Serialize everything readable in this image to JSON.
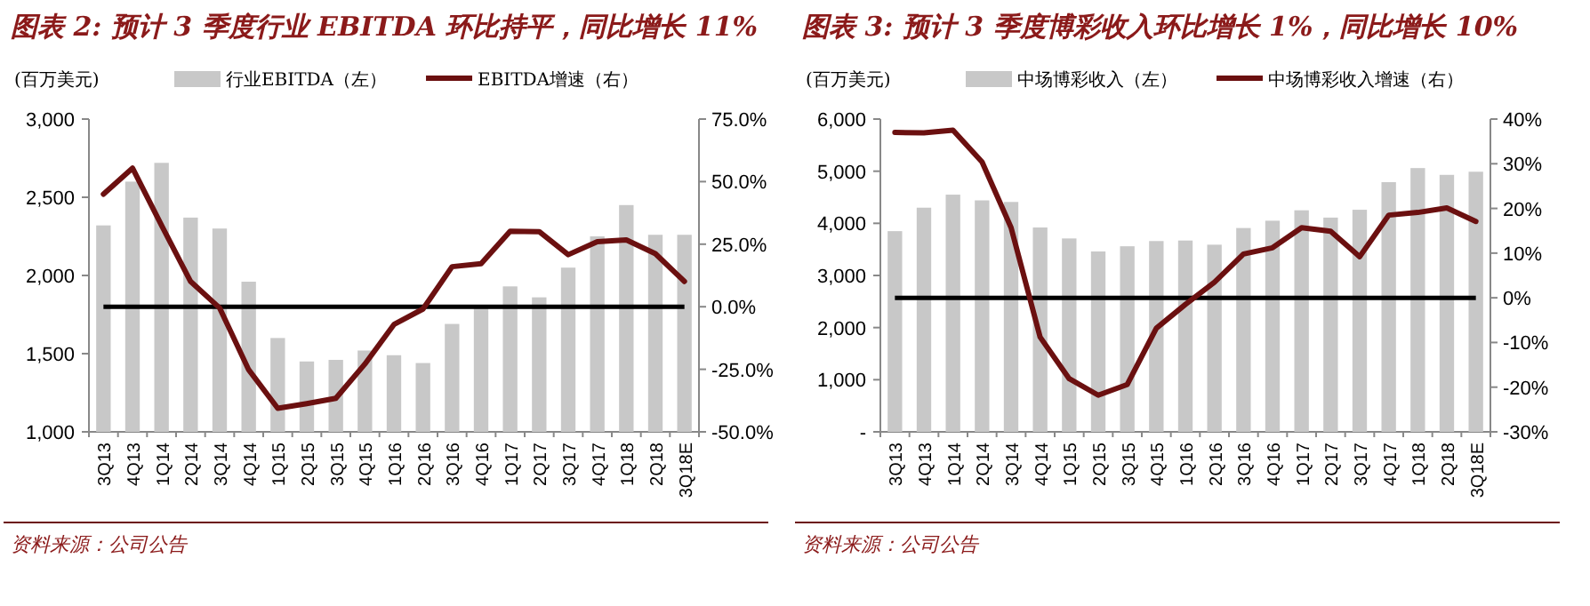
{
  "chart_data": [
    {
      "type": "bar",
      "title": "图表 2: 预计 3 季度行业 EBITDA 环比持平，同比增长 11%",
      "ylabel": "(百万美元)",
      "categories": [
        "3Q13",
        "4Q13",
        "1Q14",
        "2Q14",
        "3Q14",
        "4Q14",
        "1Q15",
        "2Q15",
        "3Q15",
        "4Q15",
        "1Q16",
        "2Q16",
        "3Q16",
        "4Q16",
        "1Q17",
        "2Q17",
        "3Q17",
        "4Q17",
        "1Q18",
        "2Q18",
        "3Q18E"
      ],
      "series": [
        {
          "name": "行业EBITDA（左）",
          "color": "#c8c8c8",
          "values": [
            2320,
            2600,
            2720,
            2370,
            2300,
            1960,
            1600,
            1450,
            1460,
            1520,
            1490,
            1440,
            1690,
            1800,
            1930,
            1860,
            2050,
            2250,
            2450,
            2260,
            2260
          ]
        },
        {
          "name": "EBITDA增速（右）",
          "type": "line",
          "axis": "y2",
          "color": "#6b1010",
          "values": [
            45,
            55.4,
            32.5,
            10.1,
            -0.5,
            -25.2,
            -40.6,
            -38.7,
            -36.6,
            -22.9,
            -7.1,
            -0.9,
            16,
            17.2,
            30.2,
            30,
            20.8,
            26,
            26.7,
            21.2,
            10.1
          ]
        }
      ],
      "ylim": [
        1000,
        3000
      ],
      "yticks": [
        {
          "value": 1000,
          "label": "1,000"
        },
        {
          "value": 1500,
          "label": "1,500"
        },
        {
          "value": 2000,
          "label": "2,000"
        },
        {
          "value": 2500,
          "label": "2,500"
        },
        {
          "value": 3000,
          "label": "3,000"
        }
      ],
      "y2lim": [
        -50,
        75
      ],
      "y2ticks": [
        {
          "value": -50,
          "label": "-50.0%"
        },
        {
          "value": -25,
          "label": "-25.0%"
        },
        {
          "value": 0,
          "label": "0.0%"
        },
        {
          "value": 25,
          "label": "25.0%"
        },
        {
          "value": 50,
          "label": "50.0%"
        },
        {
          "value": 75,
          "label": "75.0%"
        }
      ],
      "ref_lines": [
        {
          "axis": "y2",
          "value": 0,
          "color": "#000000"
        }
      ],
      "legend": "top",
      "grid": false,
      "annotations": [
        "资料来源：公司公告"
      ]
    },
    {
      "type": "bar",
      "title": "图表 3: 预计 3 季度博彩收入环比增长 1%，同比增长 10%",
      "ylabel": "(百万美元)",
      "categories": [
        "3Q13",
        "4Q13",
        "1Q14",
        "2Q14",
        "3Q14",
        "4Q14",
        "1Q15",
        "2Q15",
        "3Q15",
        "4Q15",
        "1Q16",
        "2Q16",
        "3Q16",
        "4Q16",
        "1Q17",
        "2Q17",
        "3Q17",
        "4Q17",
        "1Q18",
        "2Q18",
        "3Q18E"
      ],
      "series": [
        {
          "name": "中场博彩收入（左）",
          "color": "#c8c8c8",
          "values": [
            3850,
            4300,
            4550,
            4440,
            4410,
            3920,
            3710,
            3460,
            3560,
            3660,
            3670,
            3590,
            3910,
            4050,
            4250,
            4110,
            4260,
            4790,
            5060,
            4930,
            4990
          ]
        },
        {
          "name": "中场博彩收入增速（右）",
          "type": "line",
          "axis": "y2",
          "color": "#6b1010",
          "values": [
            37,
            36.9,
            37.5,
            30.4,
            15.7,
            -8.8,
            -18.1,
            -21.8,
            -19.4,
            -6.8,
            -1.5,
            3.5,
            9.8,
            11.2,
            15.7,
            14.9,
            9.2,
            18.5,
            19.1,
            20.1,
            17.1
          ]
        }
      ],
      "ylim": [
        0,
        6000
      ],
      "yticks": [
        {
          "value": 0,
          "label": "-"
        },
        {
          "value": 1000,
          "label": "1,000"
        },
        {
          "value": 2000,
          "label": "2,000"
        },
        {
          "value": 3000,
          "label": "3,000"
        },
        {
          "value": 4000,
          "label": "4,000"
        },
        {
          "value": 5000,
          "label": "5,000"
        },
        {
          "value": 6000,
          "label": "6,000"
        }
      ],
      "y2lim": [
        -30,
        40
      ],
      "y2ticks": [
        {
          "value": -30,
          "label": "-30%"
        },
        {
          "value": -20,
          "label": "-20%"
        },
        {
          "value": -10,
          "label": "-10%"
        },
        {
          "value": 0,
          "label": "0%"
        },
        {
          "value": 10,
          "label": "10%"
        },
        {
          "value": 20,
          "label": "20%"
        },
        {
          "value": 30,
          "label": "30%"
        },
        {
          "value": 40,
          "label": "40%"
        }
      ],
      "ref_lines": [
        {
          "axis": "y2",
          "value": 0,
          "color": "#000000"
        }
      ],
      "legend": "top",
      "grid": false,
      "annotations": [
        "资料来源：公司公告"
      ]
    }
  ]
}
